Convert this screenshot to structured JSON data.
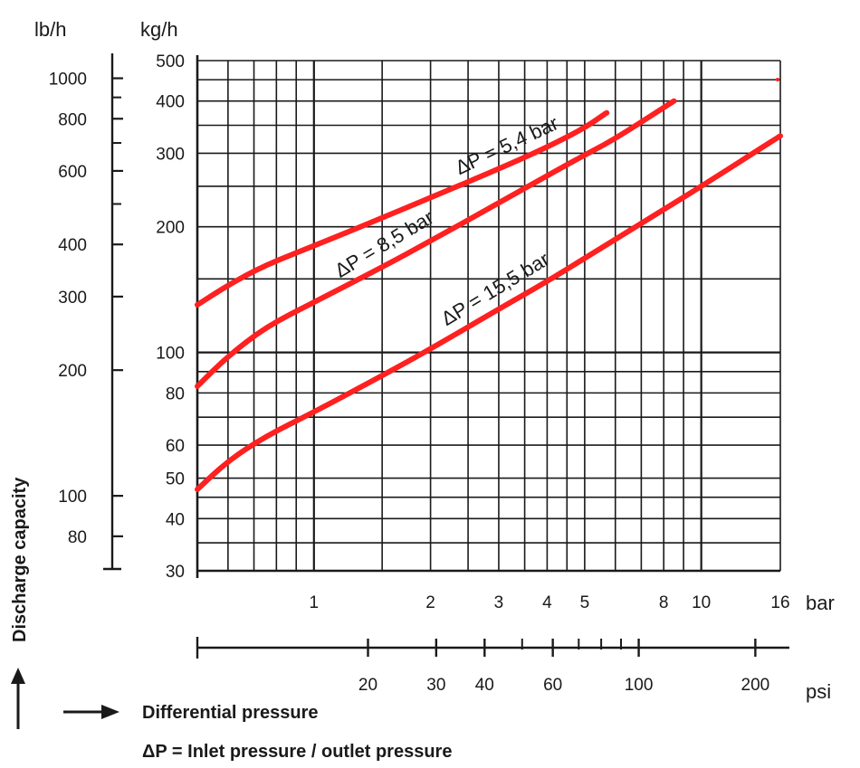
{
  "chart_data": {
    "type": "line",
    "xlabel": "Differential pressure",
    "ylabel": "Discharge capacity",
    "note": "ΔP = Inlet pressure / outlet pressure",
    "x_scale": "log",
    "y_scale": "log",
    "xlim_bar": [
      0.5,
      16
    ],
    "ylim_kgh": [
      30,
      500
    ],
    "x_unit_primary": "bar",
    "x_unit_secondary": "psi",
    "y_unit_primary": "kg/h",
    "y_unit_secondary": "lb/h",
    "grid": true,
    "x_ticks_bar": [
      "1",
      "2",
      "3",
      "4",
      "5",
      "8",
      "10",
      "16"
    ],
    "x_ticks_psi": [
      "20",
      "30",
      "40",
      "60",
      "100",
      "200"
    ],
    "y_ticks_kgh": [
      "30",
      "40",
      "50",
      "60",
      "80",
      "100",
      "200",
      "300",
      "400",
      "500"
    ],
    "y_ticks_lbh": [
      "80",
      "100",
      "200",
      "300",
      "400",
      "600",
      "800",
      "1000"
    ],
    "series": [
      {
        "name": "ΔP = 5,4 bar",
        "color": "#ff2020",
        "x": [
          0.5,
          0.6,
          0.75,
          1.0,
          1.5,
          2.0,
          3.0,
          4.0,
          5.0,
          5.7
        ],
        "y": [
          130,
          145,
          162,
          180,
          210,
          235,
          275,
          310,
          345,
          375
        ]
      },
      {
        "name": "ΔP = 8,5 bar",
        "color": "#ff2020",
        "x": [
          0.5,
          0.6,
          0.75,
          1.0,
          1.5,
          2.0,
          3.0,
          4.0,
          5.0,
          6.0,
          8.5
        ],
        "y": [
          83,
          98,
          115,
          132,
          160,
          185,
          228,
          265,
          297,
          325,
          400
        ]
      },
      {
        "name": "ΔP = 15,5 bar",
        "color": "#ff2020",
        "x": [
          0.5,
          0.6,
          0.75,
          1.0,
          1.5,
          2.0,
          3.0,
          4.0,
          5.0,
          8.0,
          10.0,
          16.0
        ],
        "y": [
          47,
          55,
          63,
          72,
          88,
          102,
          127,
          148,
          168,
          220,
          250,
          330
        ]
      }
    ]
  }
}
